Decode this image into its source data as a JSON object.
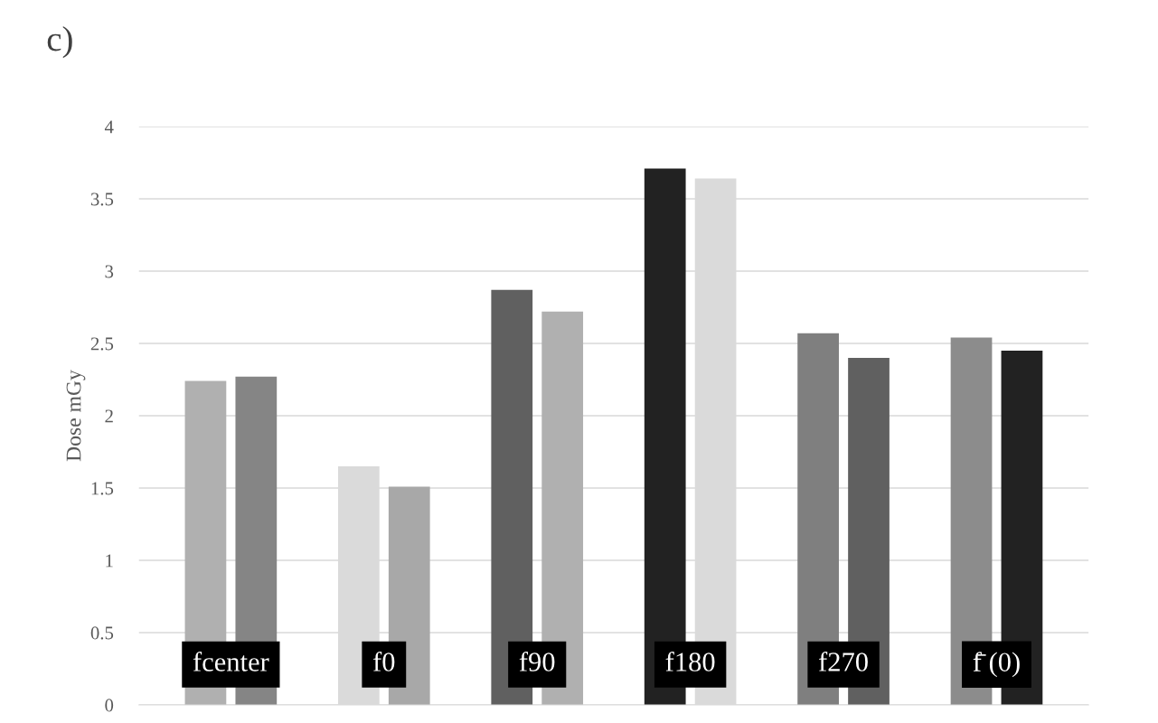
{
  "chart_data": {
    "type": "bar",
    "title": "c)",
    "ylabel": "Dose mGy",
    "categories": [
      "fcenter",
      "f0",
      "f90",
      "f180",
      "f270",
      "f̄ (0)"
    ],
    "series": [
      {
        "colors": [
          "#b0b0b0",
          "#dadada",
          "#606060",
          "#222222",
          "#7f7f7f",
          "#8c8c8c"
        ],
        "values": [
          2.24,
          1.65,
          2.87,
          3.71,
          2.57,
          2.54
        ]
      },
      {
        "colors": [
          "#858585",
          "#a8a8a8",
          "#b0b0b0",
          "#dadada",
          "#606060",
          "#222222"
        ],
        "values": [
          2.27,
          1.51,
          2.72,
          3.64,
          2.4,
          2.45
        ]
      }
    ],
    "ylim": [
      0,
      4
    ],
    "yticks": [
      0,
      0.5,
      1,
      1.5,
      2,
      2.5,
      3,
      3.5,
      4
    ],
    "grid": "y"
  }
}
